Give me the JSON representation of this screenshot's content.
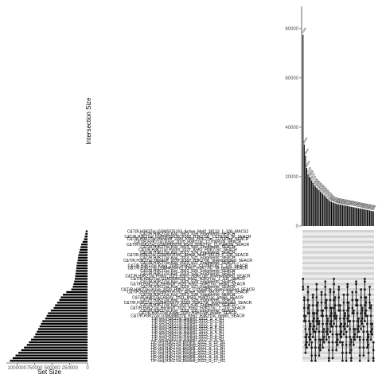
{
  "chart_data": [
    {
      "type": "bar",
      "role": "intersection-size",
      "ylabel": "Intersection Size",
      "yticks": [
        0,
        20000,
        40000,
        60000,
        80000
      ],
      "ylim": [
        0,
        89000
      ],
      "values": [
        77500,
        33000,
        28500,
        23500,
        21000,
        20000,
        19500,
        18500,
        17500,
        16500,
        16000,
        15500,
        15000,
        14500,
        14000,
        13500,
        13000,
        12500,
        12000,
        11500,
        11000,
        10500,
        10000,
        9800,
        9600,
        9400,
        9200,
        9000,
        8900,
        8800,
        8700,
        8600,
        8500,
        8400,
        8300,
        8200,
        8100,
        8000,
        7900,
        7800,
        7700,
        7600,
        7500,
        7400,
        7300,
        7200,
        7100,
        7000,
        6900,
        6800,
        6700,
        6600,
        6500,
        6400,
        6300,
        6200,
        6100,
        6000
      ]
    },
    {
      "type": "bar",
      "role": "set-size",
      "orientation": "horizontal",
      "xlabel": "Set Size",
      "xticks": [
        1000000,
        750000,
        500000,
        250000,
        0
      ],
      "xtick_labels": [
        "1000000",
        "750000",
        "500000",
        "250000",
        "0"
      ],
      "xlim": [
        0,
        1150000
      ],
      "sets": [
        "C&T(B,H3K27ac,GSM5976163_Active_Motif_38133_1_100_MACS2",
        "C&T/R,H3K27ac,Kay_2023_S19_Fragments_SEACR",
        "C&T/R,H3K27ac,GSM4650670_K562_H3K27ac_CUT&Tag_filt_SEACR",
        "C&T/R,H3K27ac,Henikoff_2020_K562_H3K27ac_CUT&Tag_SEACR",
        "C&T/R,H3K27ac,Kaya_2020_H3K27ac_CUT&RUN_SEACR",
        "C&T/R,H3K27ac,GSM3680228_K562_H3K27ac_CUT&RUN_SEACR",
        "C&T/R,H3K27ac,Kay_2023_S20_Fragments_SEACR",
        "C&T/R,H3K27ac,Pacini_2021_K562_H3K27ac_SEACR",
        "C&T/R,H3K27ac,Kay_2023_S24_Fragments_SEACR",
        "C&T/R,H3K27ac,GSM5976161_Active_Motif_38133_2_100_SEACR",
        "C&T/R,H3K27ac,Kay_2023_S21_Fragments_SEACR",
        "C&T/R,H3K27ac,Henikoff_2020_K562_H3K27ac_downsampled_SEACR",
        "C&T/R,H3K27ac,Kay_2023_S22_Fragments_SEACR",
        "C&T/R,H3K27ac,Kaya_2020_H3K27ac_CUT&RUN_1_100_SEACR",
        "C&T/R,H3K27ac,GSM4650670_K562_H3K27ac_filt_peaks_SEACR",
        "C&T/R,H3K27ac,Kay_2023_S23_Fragments_SEACR",
        "C&T/R,H3K27ac,Kay_2023_S25_Fragments_SEACR",
        "C&T/R,H3K27ac,Pacini_2021_K562_H3K27ac_downsampled_SEACR",
        "C&T/R,H3K27ac,GSM3680228_K562_H3K27ac_1_100_SEACR",
        "C&T/R,H3K27ac,Kay_2023_S26_Fragments_SEACR",
        "C&T/R,H3K27ac,Henikoff_2020_K562_H3K27ac_peaks_SEACR",
        "C&T/R,H3K27ac,Kay_2023_S27_Fragments_SEACR",
        "C&T/R,H3K27ac,Kaya_2020_H3K27ac_CUT&RUN_downsampled_SEACR",
        "C&T/R,H3K27ac,GSM5976162_Active_Motif_38133_3_100_SEACR",
        "C&T/R,H3K27ac,Kay_2023_S28_Fragments_SEACR",
        "C&T/R,H3K27ac,Pacini_2021_K562_H3K27ac_peaks_SEACR",
        "C&T/R,H3K27ac,Kay_2023_S29_Fragments_SEACR",
        "C&T/R,H3K27ac,GSM4650670_K562_H3K27ac_downsampled_SEACR",
        "C&T/R,H3K27ac,Kay_2023_S30_Fragments_SEACR",
        "C&T/R,H3K27ac,Henikoff_2020_K562_H3K27ac_1_100_SEACR",
        "C&T/R,H3K27ac,Kay_2023_S31_Fragments_SEACR",
        "C&T/R,H3K27ac,Kaya_2020_H3K27ac_peaks_SEACR",
        "C&T/R,H3K27ac,GSM3680228_K562_H3K27ac_peaks_SEACR",
        "TIP-seq,H3K27ac,Bartlett_2022_S_1_R1",
        "TIP-seq,H3K27ac,Bartlett_2022_S_2_R1",
        "TIP-seq,H3K27ac,Bartlett_2022_S_3_R1",
        "TIP-seq,H3K27ac,Bartlett_2022_S_4_R1",
        "TIP-seq,H3K27ac,Bartlett_2022_S_5_R1",
        "TIP-seq,H3K27ac,Bartlett_2022_S_6_R1",
        "TIP-seq,H3K27ac,Bartlett_2022_S_7_R1",
        "TIP-seq,H3K27ac,Bartlett_2022_S_8_R1",
        "TIP-seq,H3K27ac,Bartlett_2022_S_9_R1",
        "TIP-seq,H3K27ac,Bartlett_2022_S_10_R1",
        "TIP-seq,H3K27ac,Bartlett_2022_S_11_R1",
        "TIP-seq,H3K27ac,Bartlett_2022_S_12_R1",
        "TIP-seq,H3K27ac,Bartlett_2022_S_13_R1",
        "TIP-seq,H3K27ac,Bartlett_2022_S_14_R1",
        "TIP-seq,H3K27ac,Bartlett_2022_S_15_R1",
        "TIP-seq,H3K27ac,Bartlett_2022_S_16_R1",
        "TIP-seq,H3K27ac,Bartlett_2022_S_17_R1"
      ],
      "values": [
        25000,
        30000,
        40000,
        50000,
        70000,
        90000,
        100000,
        110000,
        120000,
        130000,
        135000,
        140000,
        150000,
        155000,
        160000,
        165000,
        170000,
        175000,
        180000,
        190000,
        200000,
        210000,
        230000,
        300000,
        350000,
        380000,
        400000,
        430000,
        460000,
        480000,
        520000,
        560000,
        580000,
        600000,
        640000,
        660000,
        680000,
        700000,
        720000,
        740000,
        760000,
        800000,
        830000,
        860000,
        900000,
        940000,
        980000,
        1020000,
        1060000,
        1100000
      ]
    }
  ]
}
